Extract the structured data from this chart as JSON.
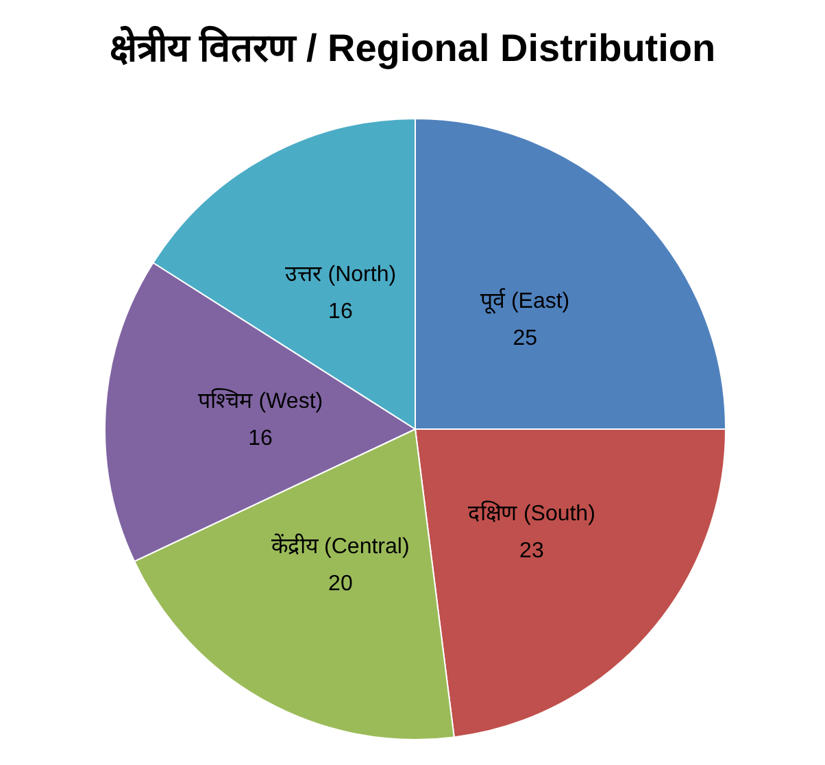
{
  "chart_data": {
    "type": "pie",
    "title": "क्षेत्रीय वितरण / Regional Distribution",
    "categories": [
      "पूर्व (East)",
      "दक्षिण (South)",
      "केंद्रीय (Central)",
      "पश्चिम (West)",
      "उत्तर (North)"
    ],
    "values": [
      25,
      23,
      20,
      16,
      16
    ],
    "colors": [
      "#4f81bd",
      "#c0504d",
      "#9bbb59",
      "#8064a2",
      "#4bacc6"
    ],
    "data_labels": true
  }
}
